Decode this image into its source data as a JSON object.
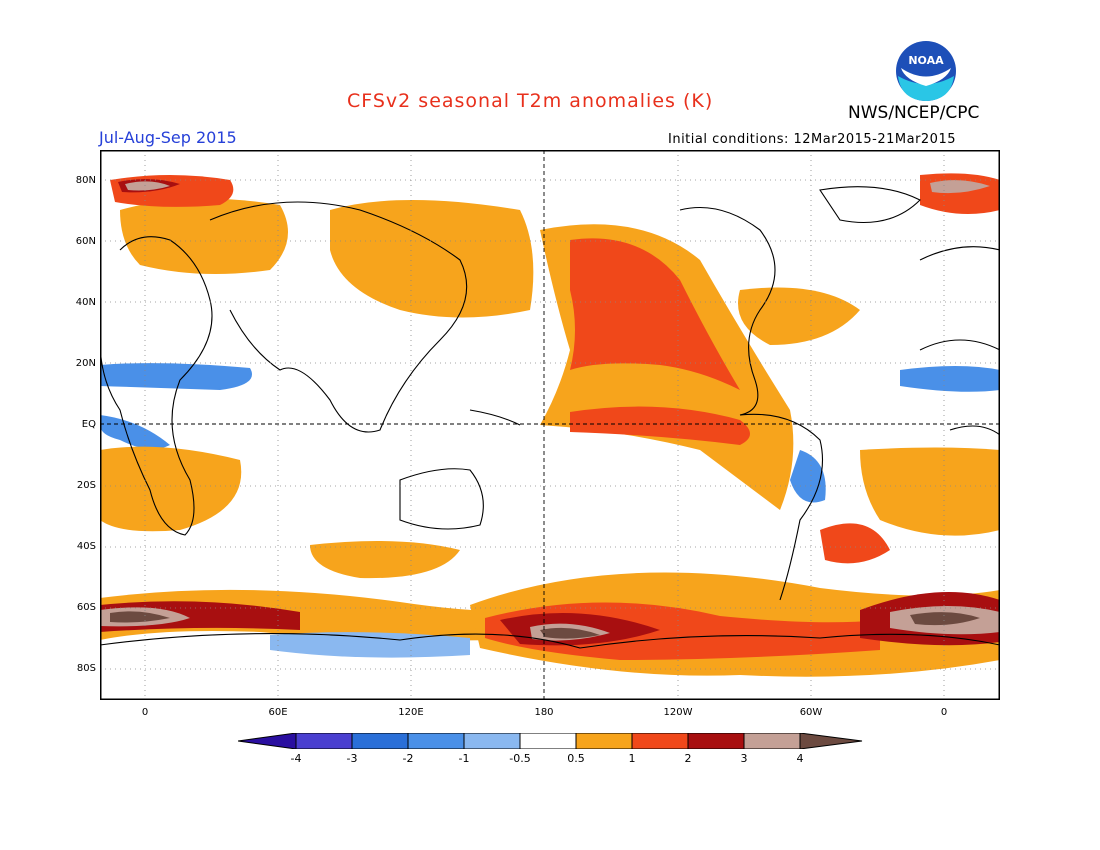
{
  "header": {
    "title": "CFSv2 seasonal T2m anomalies (K)",
    "period": "Jul-Aug-Sep 2015",
    "agency": "NWS/NCEP/CPC",
    "initial_conditions": "Initial conditions: 12Mar2015-21Mar2015",
    "logo_text": "NOAA"
  },
  "map": {
    "lat_labels": [
      "80N",
      "60N",
      "40N",
      "20N",
      "EQ",
      "20S",
      "40S",
      "60S",
      "80S"
    ],
    "lon_labels": [
      "0",
      "60E",
      "120E",
      "180",
      "120W",
      "60W",
      "0"
    ]
  },
  "colorbar": {
    "labels": [
      "-4",
      "-3",
      "-2",
      "-1",
      "-0.5",
      "0.5",
      "1",
      "2",
      "3",
      "4"
    ],
    "colors": [
      "#2a0fa0",
      "#4a3fd0",
      "#2a6fd8",
      "#4a90e8",
      "#8ab8f0",
      "#ffffff",
      "#f7a41c",
      "#f0481a",
      "#a80f10",
      "#c4a096",
      "#6c4a40"
    ]
  }
}
